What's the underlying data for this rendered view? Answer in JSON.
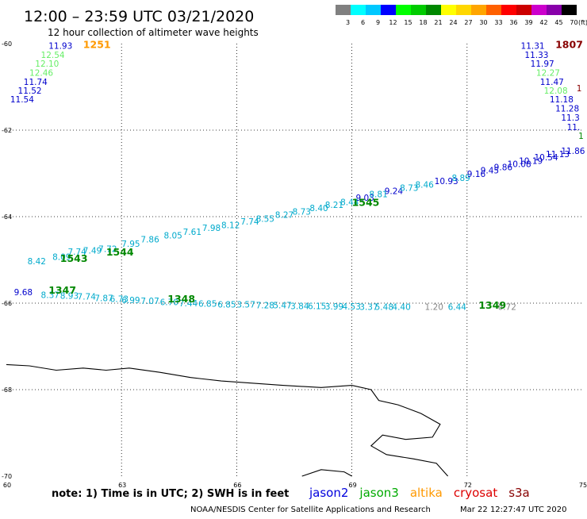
{
  "header": {
    "title": "12:00 – 23:59 UTC 03/21/2020",
    "subtitle": "12 hour collection of altimeter wave heights"
  },
  "legend": {
    "unit": "(ft)",
    "bins": [
      {
        "label": "3",
        "color": "#808080"
      },
      {
        "label": "6",
        "color": "#00ffff"
      },
      {
        "label": "9",
        "color": "#00c8ff"
      },
      {
        "label": "12",
        "color": "#0000ff"
      },
      {
        "label": "15",
        "color": "#00ff00"
      },
      {
        "label": "18",
        "color": "#00cc00"
      },
      {
        "label": "21",
        "color": "#008800"
      },
      {
        "label": "24",
        "color": "#ffff00"
      },
      {
        "label": "27",
        "color": "#ffd700"
      },
      {
        "label": "30",
        "color": "#ffa500"
      },
      {
        "label": "33",
        "color": "#ff6000"
      },
      {
        "label": "36",
        "color": "#ff0000"
      },
      {
        "label": "39",
        "color": "#cc0000"
      },
      {
        "label": "42",
        "color": "#cc00cc"
      },
      {
        "label": "45",
        "color": "#8800aa"
      },
      {
        "label": "70",
        "color": "#000000"
      }
    ]
  },
  "map": {
    "lon_range": [
      60,
      75
    ],
    "lat_range": [
      -70,
      -60
    ],
    "lon_ticks": [
      "60",
      "63",
      "66",
      "69",
      "72",
      "75"
    ],
    "lat_ticks": [
      "-60",
      "-62",
      "-64",
      "-66",
      "-68",
      "-70"
    ],
    "grid_lon": [
      63,
      66,
      69,
      72
    ],
    "grid_lat": [
      -62,
      -64,
      -66,
      -68
    ],
    "coastline": [
      [
        60.0,
        -67.42
      ],
      [
        60.6,
        -67.45
      ],
      [
        61.3,
        -67.55
      ],
      [
        62.0,
        -67.5
      ],
      [
        62.6,
        -67.55
      ],
      [
        63.2,
        -67.5
      ],
      [
        64.0,
        -67.6
      ],
      [
        64.8,
        -67.72
      ],
      [
        65.6,
        -67.8
      ],
      [
        66.4,
        -67.85
      ],
      [
        67.2,
        -67.9
      ],
      [
        68.2,
        -67.95
      ],
      [
        69.0,
        -67.9
      ],
      [
        69.5,
        -68.0
      ],
      [
        69.7,
        -68.25
      ],
      [
        70.2,
        -68.35
      ],
      [
        70.8,
        -68.55
      ],
      [
        71.3,
        -68.8
      ],
      [
        71.1,
        -69.1
      ],
      [
        70.4,
        -69.15
      ],
      [
        69.8,
        -69.05
      ],
      [
        69.5,
        -69.3
      ],
      [
        69.9,
        -69.5
      ],
      [
        70.6,
        -69.6
      ],
      [
        71.2,
        -69.7
      ],
      [
        71.5,
        -70.0
      ]
    ],
    "coastline2": [
      [
        67.7,
        -70.0
      ],
      [
        68.2,
        -69.85
      ],
      [
        68.8,
        -69.9
      ],
      [
        69.0,
        -70.0
      ]
    ]
  },
  "passes": [
    {
      "label": "1251",
      "label_color": "#ff9900",
      "label_pos": [
        62.0,
        -60.1
      ],
      "points": [
        {
          "lon": 61.1,
          "lat": -60.12,
          "value": "11.93",
          "color": "#0000cc"
        },
        {
          "lon": 60.9,
          "lat": -60.33,
          "value": "12.54",
          "color": "#66ee66"
        },
        {
          "lon": 60.75,
          "lat": -60.53,
          "value": "12.10",
          "color": "#66ee66"
        },
        {
          "lon": 60.6,
          "lat": -60.74,
          "value": "12.46",
          "color": "#66ee66"
        },
        {
          "lon": 60.45,
          "lat": -60.95,
          "value": "11.74",
          "color": "#0000cc"
        },
        {
          "lon": 60.3,
          "lat": -61.16,
          "value": "11.52",
          "color": "#0000cc"
        },
        {
          "lon": 60.1,
          "lat": -61.36,
          "value": "11.54",
          "color": "#0000cc"
        }
      ]
    },
    {
      "label": "1807",
      "label_color": "#880000",
      "label_pos": [
        74.3,
        -60.1
      ],
      "points": [
        {
          "lon": 73.4,
          "lat": -60.12,
          "value": "11.31",
          "color": "#0000cc"
        },
        {
          "lon": 73.5,
          "lat": -60.33,
          "value": "11.33",
          "color": "#0000cc"
        },
        {
          "lon": 73.65,
          "lat": -60.53,
          "value": "11.97",
          "color": "#0000cc"
        },
        {
          "lon": 73.8,
          "lat": -60.74,
          "value": "12.27",
          "color": "#66ee66"
        },
        {
          "lon": 73.9,
          "lat": -60.95,
          "value": "11.47",
          "color": "#0000cc"
        },
        {
          "lon": 74.0,
          "lat": -61.16,
          "value": "12.08",
          "color": "#66ee66"
        },
        {
          "lon": 74.15,
          "lat": -61.36,
          "value": "11.18",
          "color": "#0000cc"
        },
        {
          "lon": 74.3,
          "lat": -61.57,
          "value": "11.28",
          "color": "#0000cc"
        },
        {
          "lon": 74.45,
          "lat": -61.78,
          "value": "11.3",
          "color": "#0000cc"
        },
        {
          "lon": 74.6,
          "lat": -62.0,
          "value": "11.",
          "color": "#0000cc"
        },
        {
          "lon": 74.85,
          "lat": -61.1,
          "value": "1",
          "color": "#880000"
        },
        {
          "lon": 74.9,
          "lat": -62.2,
          "value": "1",
          "color": "#008800"
        }
      ]
    },
    {
      "label": "1545",
      "label_color": "#008800",
      "label_pos": [
        69.0,
        -63.75
      ],
      "points": [
        {
          "lon": 60.55,
          "lat": -65.1,
          "value": "8.42",
          "color": "#00aacc"
        },
        {
          "lon": 61.2,
          "lat": -65.0,
          "value": "8.09",
          "color": "#00aacc"
        },
        {
          "lon": 61.6,
          "lat": -64.88,
          "value": "7.74",
          "color": "#00aacc"
        },
        {
          "lon": 62.0,
          "lat": -64.85,
          "value": "7.49",
          "color": "#00aacc"
        },
        {
          "lon": 62.4,
          "lat": -64.82,
          "value": "7.72",
          "color": "#00aacc"
        },
        {
          "lon": 63.0,
          "lat": -64.7,
          "value": "7.95",
          "color": "#00aacc"
        },
        {
          "lon": 63.5,
          "lat": -64.6,
          "value": "7.86",
          "color": "#00aacc"
        },
        {
          "lon": 64.1,
          "lat": -64.5,
          "value": "8.05",
          "color": "#00aacc"
        },
        {
          "lon": 64.6,
          "lat": -64.42,
          "value": "7.61",
          "color": "#00aacc"
        },
        {
          "lon": 65.1,
          "lat": -64.33,
          "value": "7.98",
          "color": "#00aacc"
        },
        {
          "lon": 65.6,
          "lat": -64.27,
          "value": "8.12",
          "color": "#00aacc"
        },
        {
          "lon": 66.1,
          "lat": -64.18,
          "value": "7.74",
          "color": "#00aacc"
        },
        {
          "lon": 66.5,
          "lat": -64.12,
          "value": "8.55",
          "color": "#00aacc"
        },
        {
          "lon": 67.0,
          "lat": -64.03,
          "value": "8.27",
          "color": "#00aacc"
        },
        {
          "lon": 67.45,
          "lat": -63.95,
          "value": "8.73",
          "color": "#00aacc"
        },
        {
          "lon": 67.9,
          "lat": -63.87,
          "value": "8.40",
          "color": "#00aacc"
        },
        {
          "lon": 68.3,
          "lat": -63.8,
          "value": "8.21",
          "color": "#00aacc"
        },
        {
          "lon": 68.7,
          "lat": -63.73,
          "value": "8.44",
          "color": "#00aacc"
        },
        {
          "lon": 69.1,
          "lat": -63.63,
          "value": "9.03",
          "color": "#0000cc"
        },
        {
          "lon": 69.45,
          "lat": -63.55,
          "value": "8.81",
          "color": "#00aacc"
        },
        {
          "lon": 69.85,
          "lat": -63.48,
          "value": "9.24",
          "color": "#0000cc"
        },
        {
          "lon": 70.25,
          "lat": -63.4,
          "value": "8.73",
          "color": "#00aacc"
        },
        {
          "lon": 70.65,
          "lat": -63.33,
          "value": "8.46",
          "color": "#00aacc"
        },
        {
          "lon": 71.15,
          "lat": -63.25,
          "value": "10.93",
          "color": "#0000cc"
        },
        {
          "lon": 71.6,
          "lat": -63.17,
          "value": "8.89",
          "color": "#00aacc"
        },
        {
          "lon": 72.0,
          "lat": -63.08,
          "value": "9.16",
          "color": "#0000cc"
        },
        {
          "lon": 72.35,
          "lat": -63.0,
          "value": "9.45",
          "color": "#0000cc"
        },
        {
          "lon": 72.7,
          "lat": -62.93,
          "value": "9.86",
          "color": "#0000cc"
        },
        {
          "lon": 73.05,
          "lat": -62.85,
          "value": "10.08",
          "color": "#0000cc"
        },
        {
          "lon": 73.35,
          "lat": -62.78,
          "value": "10.19",
          "color": "#0000cc"
        },
        {
          "lon": 73.75,
          "lat": -62.7,
          "value": "10.54",
          "color": "#0000cc"
        },
        {
          "lon": 74.05,
          "lat": -62.62,
          "value": "11.13",
          "color": "#0000cc"
        },
        {
          "lon": 74.45,
          "lat": -62.55,
          "value": "11.86",
          "color": "#0000cc"
        }
      ]
    },
    {
      "label": "1543",
      "label_color": "#008800",
      "label_pos": [
        61.4,
        -65.05
      ],
      "points": []
    },
    {
      "label": "1544",
      "label_color": "#008800",
      "label_pos": [
        62.6,
        -64.9
      ],
      "points": []
    },
    {
      "label": "1347",
      "label_color": "#008800",
      "label_pos": [
        61.1,
        -65.78
      ],
      "points": [
        {
          "lon": 60.2,
          "lat": -65.82,
          "value": "9.68",
          "color": "#0000cc"
        },
        {
          "lon": 60.9,
          "lat": -65.88,
          "value": "8.37",
          "color": "#00aacc"
        },
        {
          "lon": 61.4,
          "lat": -65.9,
          "value": "8.93",
          "color": "#00aacc"
        },
        {
          "lon": 61.85,
          "lat": -65.92,
          "value": "7.74",
          "color": "#00aacc"
        },
        {
          "lon": 62.3,
          "lat": -65.95,
          "value": "7.87",
          "color": "#00aacc"
        },
        {
          "lon": 62.7,
          "lat": -65.97,
          "value": "6.73",
          "color": "#00aacc"
        },
        {
          "lon": 63.0,
          "lat": -66.0,
          "value": "6.99",
          "color": "#00aacc"
        },
        {
          "lon": 63.5,
          "lat": -66.02,
          "value": "7.07",
          "color": "#00aacc"
        },
        {
          "lon": 64.0,
          "lat": -66.05,
          "value": "6.70",
          "color": "#00aacc"
        },
        {
          "lon": 64.5,
          "lat": -66.07,
          "value": "7.44",
          "color": "#00aacc"
        },
        {
          "lon": 65.0,
          "lat": -66.08,
          "value": "6.85",
          "color": "#00aacc"
        },
        {
          "lon": 65.5,
          "lat": -66.1,
          "value": "6.85",
          "color": "#00aacc"
        },
        {
          "lon": 66.0,
          "lat": -66.1,
          "value": "3.57",
          "color": "#00aacc"
        },
        {
          "lon": 66.5,
          "lat": -66.12,
          "value": "7.28",
          "color": "#00aacc"
        },
        {
          "lon": 66.95,
          "lat": -66.12,
          "value": "5.47",
          "color": "#00aacc"
        },
        {
          "lon": 67.4,
          "lat": -66.14,
          "value": "3.84",
          "color": "#00aacc"
        },
        {
          "lon": 67.85,
          "lat": -66.14,
          "value": "6.15",
          "color": "#00aacc"
        },
        {
          "lon": 68.3,
          "lat": -66.15,
          "value": "3.99",
          "color": "#00aacc"
        },
        {
          "lon": 68.75,
          "lat": -66.15,
          "value": "4.53",
          "color": "#00aacc"
        },
        {
          "lon": 69.2,
          "lat": -66.16,
          "value": "3.37",
          "color": "#00aacc"
        },
        {
          "lon": 69.6,
          "lat": -66.16,
          "value": "5.48",
          "color": "#00aacc"
        },
        {
          "lon": 70.05,
          "lat": -66.16,
          "value": "4.40",
          "color": "#00aacc"
        },
        {
          "lon": 70.9,
          "lat": -66.16,
          "value": "1.20",
          "color": "#888888"
        },
        {
          "lon": 71.5,
          "lat": -66.16,
          "value": "6.44",
          "color": "#00aacc"
        },
        {
          "lon": 72.8,
          "lat": -66.16,
          "value": "6.72",
          "color": "#888888"
        }
      ]
    },
    {
      "label": "1348",
      "label_color": "#008800",
      "label_pos": [
        64.2,
        -65.98
      ],
      "points": []
    },
    {
      "label": "1349",
      "label_color": "#008800",
      "label_pos": [
        72.3,
        -66.13
      ],
      "points": []
    }
  ],
  "footer": {
    "note": "note:  1) Time is in UTC;  2) SWH is in feet",
    "satellites": [
      {
        "name": "jason2",
        "color": "#0000dd"
      },
      {
        "name": "jason3",
        "color": "#00aa00"
      },
      {
        "name": "altika",
        "color": "#ff9900"
      },
      {
        "name": "cryosat",
        "color": "#dd0000"
      },
      {
        "name": "s3a",
        "color": "#880000"
      }
    ],
    "credit": "NOAA/NESDIS Center for Satellite Applications and Research",
    "timestamp": "Mar 22 12:27:47 UTC 2020"
  }
}
